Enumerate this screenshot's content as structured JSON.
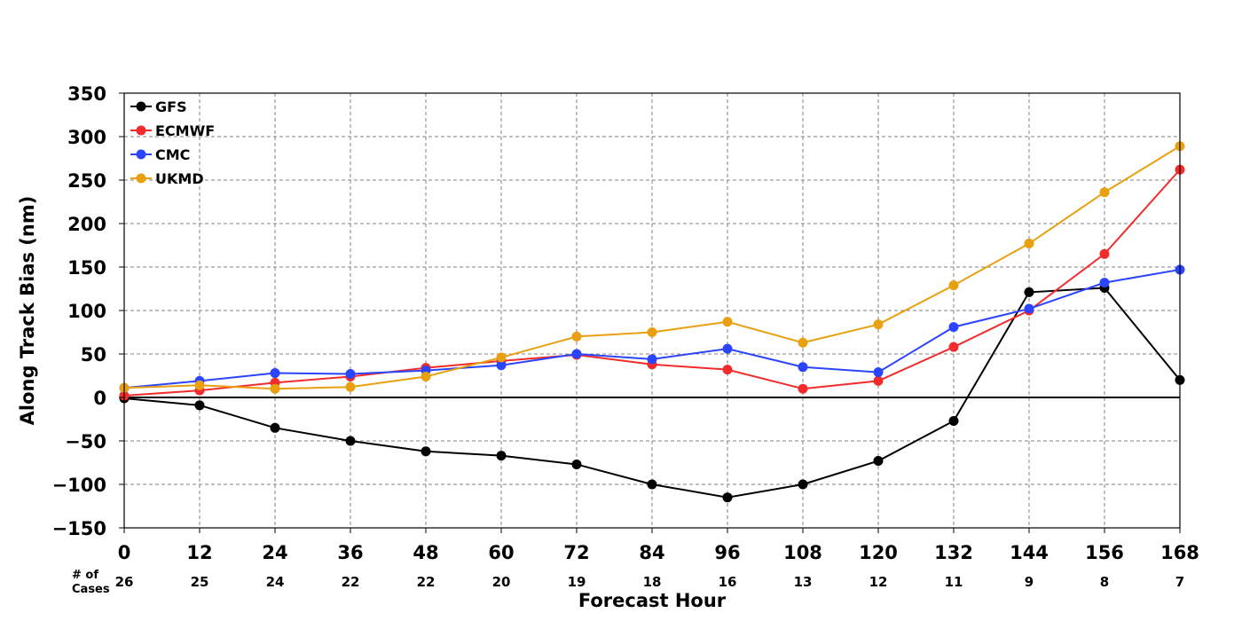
{
  "chart_data": {
    "type": "line",
    "xlabel": "Forecast Hour",
    "ylabel": "Along Track Bias (nm)",
    "x": [
      0,
      12,
      24,
      36,
      48,
      60,
      72,
      84,
      96,
      108,
      120,
      132,
      144,
      156,
      168
    ],
    "xlim": [
      0,
      168
    ],
    "ylim": [
      -150,
      350
    ],
    "yticks": [
      -150,
      -100,
      -50,
      0,
      50,
      100,
      150,
      200,
      250,
      300,
      350
    ],
    "ytick_labels": [
      "−150",
      "−100",
      "−50",
      "0",
      "50",
      "100",
      "150",
      "200",
      "250",
      "300",
      "350"
    ],
    "grid": true,
    "legend_position": "top-left",
    "cases_label": [
      "# of",
      "Cases"
    ],
    "cases": [
      26,
      25,
      24,
      22,
      22,
      20,
      19,
      18,
      16,
      13,
      12,
      11,
      9,
      8,
      7
    ],
    "series": [
      {
        "name": "GFS",
        "color": "#000000",
        "values": [
          -1,
          -9,
          -35,
          -50,
          -62,
          -67,
          -77,
          -100,
          -115,
          -100,
          -73,
          -27,
          121,
          126,
          20
        ]
      },
      {
        "name": "ECMWF",
        "color": "#f22c2c",
        "values": [
          2,
          8,
          17,
          24,
          34,
          42,
          49,
          38,
          32,
          10,
          19,
          58,
          100,
          165,
          262
        ]
      },
      {
        "name": "CMC",
        "color": "#2b44ff",
        "values": [
          11,
          19,
          28,
          27,
          31,
          37,
          50,
          44,
          56,
          35,
          29,
          81,
          102,
          132,
          147
        ]
      },
      {
        "name": "UKMD",
        "color": "#e9a010",
        "values": [
          11,
          14,
          10,
          12,
          24,
          46,
          70,
          75,
          87,
          63,
          84,
          129,
          177,
          236,
          289
        ]
      }
    ]
  }
}
